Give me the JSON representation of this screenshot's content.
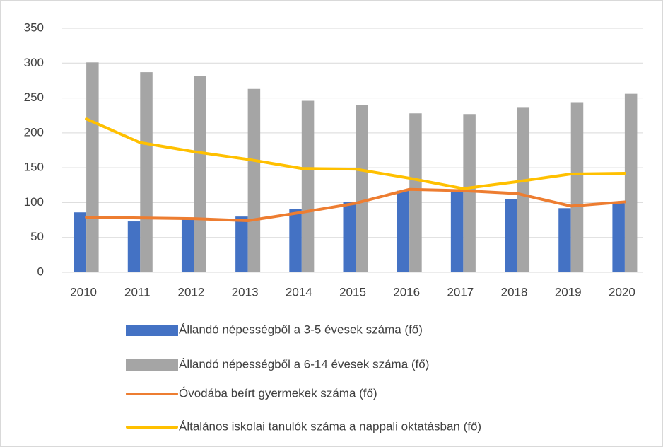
{
  "chart_data": {
    "type": "bar-line",
    "categories": [
      "2010",
      "2011",
      "2012",
      "2013",
      "2014",
      "2015",
      "2016",
      "2017",
      "2018",
      "2019",
      "2020"
    ],
    "series": [
      {
        "name": "Állandó népességből a 3-5 évesek száma (fő)",
        "type": "bar",
        "color": "#4472c4",
        "values": [
          86,
          73,
          76,
          80,
          91,
          101,
          117,
          119,
          105,
          92,
          99
        ]
      },
      {
        "name": "Állandó népességből a 6-14 évesek száma (fő)",
        "type": "bar",
        "color": "#a5a5a5",
        "values": [
          301,
          287,
          282,
          263,
          246,
          240,
          228,
          227,
          237,
          244,
          256
        ]
      },
      {
        "name": "Óvodába beírt gyermekek száma (fő)",
        "type": "line",
        "color": "#ed7d31",
        "values": [
          79,
          78,
          77,
          74,
          86,
          99,
          119,
          117,
          113,
          95,
          101
        ]
      },
      {
        "name": "Általános iskolai tanulók száma a nappali oktatásban (fő)",
        "type": "line",
        "color": "#ffc000",
        "values": [
          220,
          186,
          173,
          162,
          149,
          148,
          135,
          120,
          130,
          141,
          142
        ]
      }
    ],
    "ylim": [
      0,
      350
    ],
    "yticks": [
      0,
      50,
      100,
      150,
      200,
      250,
      300,
      350
    ],
    "grid": true,
    "legend": "bottom"
  }
}
